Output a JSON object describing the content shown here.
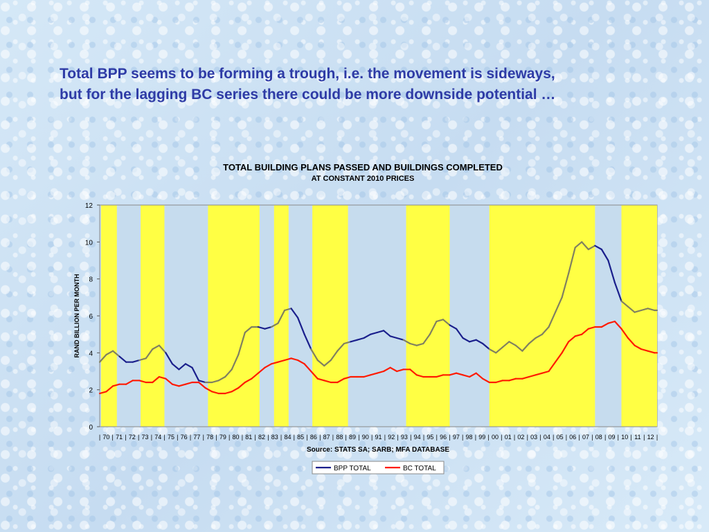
{
  "headline": {
    "line1": "Total BPP seems to be forming a trough, i.e. the movement is sideways,",
    "line2": "but for the lagging BC series there could be more downside potential …"
  },
  "colors": {
    "bpp": "#1a1f8c",
    "bc": "#ff1a00",
    "shade_band": "#ffff44",
    "overlap": "#808060",
    "plot_bg": "#c6dcee",
    "headline": "#2e3ba6"
  },
  "chart_data": {
    "type": "line",
    "title": "TOTAL BUILDING PLANS PASSED AND BUILDINGS COMPLETED",
    "subtitle": "AT CONSTANT 2010 PRICES",
    "ylabel": "RAND BILLION PER MONTH",
    "xlabel": "Source: STATS SA; SARB; MFA DATABASE",
    "ylim": [
      0,
      12
    ],
    "yticks": [
      "0",
      "2",
      "4",
      "6",
      "8",
      "10",
      "12"
    ],
    "xlim": [
      1970,
      2012.2
    ],
    "categories": [
      "70",
      "71",
      "72",
      "73",
      "74",
      "75",
      "76",
      "77",
      "78",
      "79",
      "80",
      "81",
      "82",
      "83",
      "84",
      "85",
      "86",
      "87",
      "88",
      "89",
      "90",
      "91",
      "92",
      "93",
      "94",
      "95",
      "96",
      "97",
      "98",
      "99",
      "00",
      "01",
      "02",
      "03",
      "04",
      "05",
      "06",
      "07",
      "08",
      "09",
      "10",
      "11",
      "12"
    ],
    "legend": {
      "position": "bottom-center"
    },
    "shaded_periods": [
      [
        1970.1,
        1971.3
      ],
      [
        1973.1,
        1974.9
      ],
      [
        1978.2,
        1982.1
      ],
      [
        1983.2,
        1984.3
      ],
      [
        1986.1,
        1988.8
      ],
      [
        1993.2,
        1996.5
      ],
      [
        1999.5,
        2007.5
      ],
      [
        2009.5,
        2012.2
      ]
    ],
    "series": [
      {
        "name": "BPP TOTAL",
        "x": [
          1970.0,
          1970.5,
          1971.0,
          1971.5,
          1972.0,
          1972.5,
          1973.0,
          1973.5,
          1974.0,
          1974.5,
          1975.0,
          1975.5,
          1976.0,
          1976.5,
          1977.0,
          1977.5,
          1978.0,
          1978.5,
          1979.0,
          1979.5,
          1980.0,
          1980.5,
          1981.0,
          1981.5,
          1982.0,
          1982.5,
          1983.0,
          1983.5,
          1984.0,
          1984.5,
          1985.0,
          1985.5,
          1986.0,
          1986.5,
          1987.0,
          1987.5,
          1988.0,
          1988.5,
          1989.0,
          1989.5,
          1990.0,
          1990.5,
          1991.0,
          1991.5,
          1992.0,
          1992.5,
          1993.0,
          1993.5,
          1994.0,
          1994.5,
          1995.0,
          1995.5,
          1996.0,
          1996.5,
          1997.0,
          1997.5,
          1998.0,
          1998.5,
          1999.0,
          1999.5,
          2000.0,
          2000.5,
          2001.0,
          2001.5,
          2002.0,
          2002.5,
          2003.0,
          2003.5,
          2004.0,
          2004.5,
          2005.0,
          2005.5,
          2006.0,
          2006.5,
          2007.0,
          2007.5,
          2008.0,
          2008.5,
          2009.0,
          2009.5,
          2010.0,
          2010.5,
          2011.0,
          2011.5,
          2012.0,
          2012.2
        ],
        "y": [
          3.5,
          3.9,
          4.1,
          3.8,
          3.5,
          3.5,
          3.6,
          3.7,
          4.2,
          4.4,
          4.0,
          3.4,
          3.1,
          3.4,
          3.2,
          2.5,
          2.4,
          2.4,
          2.5,
          2.7,
          3.1,
          3.9,
          5.1,
          5.4,
          5.4,
          5.3,
          5.4,
          5.6,
          6.3,
          6.4,
          5.9,
          5.0,
          4.2,
          3.6,
          3.3,
          3.6,
          4.1,
          4.5,
          4.6,
          4.7,
          4.8,
          5.0,
          5.1,
          5.2,
          4.9,
          4.8,
          4.7,
          4.5,
          4.4,
          4.5,
          5.0,
          5.7,
          5.8,
          5.5,
          5.3,
          4.8,
          4.6,
          4.7,
          4.5,
          4.2,
          4.0,
          4.3,
          4.6,
          4.4,
          4.1,
          4.5,
          4.8,
          5.0,
          5.4,
          6.2,
          7.0,
          8.3,
          9.7,
          10.0,
          9.6,
          9.8,
          9.6,
          9.0,
          7.8,
          6.8,
          6.5,
          6.2,
          6.3,
          6.4,
          6.3,
          6.3
        ]
      },
      {
        "name": "BC TOTAL",
        "x": [
          1970.0,
          1970.5,
          1971.0,
          1971.5,
          1972.0,
          1972.5,
          1973.0,
          1973.5,
          1974.0,
          1974.5,
          1975.0,
          1975.5,
          1976.0,
          1976.5,
          1977.0,
          1977.5,
          1978.0,
          1978.5,
          1979.0,
          1979.5,
          1980.0,
          1980.5,
          1981.0,
          1981.5,
          1982.0,
          1982.5,
          1983.0,
          1983.5,
          1984.0,
          1984.5,
          1985.0,
          1985.5,
          1986.0,
          1986.5,
          1987.0,
          1987.5,
          1988.0,
          1988.5,
          1989.0,
          1989.5,
          1990.0,
          1990.5,
          1991.0,
          1991.5,
          1992.0,
          1992.5,
          1993.0,
          1993.5,
          1994.0,
          1994.5,
          1995.0,
          1995.5,
          1996.0,
          1996.5,
          1997.0,
          1997.5,
          1998.0,
          1998.5,
          1999.0,
          1999.5,
          2000.0,
          2000.5,
          2001.0,
          2001.5,
          2002.0,
          2002.5,
          2003.0,
          2003.5,
          2004.0,
          2004.5,
          2005.0,
          2005.5,
          2006.0,
          2006.5,
          2007.0,
          2007.5,
          2008.0,
          2008.5,
          2009.0,
          2009.5,
          2010.0,
          2010.5,
          2011.0,
          2011.5,
          2012.0,
          2012.2
        ],
        "y": [
          1.8,
          1.9,
          2.2,
          2.3,
          2.3,
          2.5,
          2.5,
          2.4,
          2.4,
          2.7,
          2.6,
          2.3,
          2.2,
          2.3,
          2.4,
          2.4,
          2.1,
          1.9,
          1.8,
          1.8,
          1.9,
          2.1,
          2.4,
          2.6,
          2.9,
          3.2,
          3.4,
          3.5,
          3.6,
          3.7,
          3.6,
          3.4,
          3.0,
          2.6,
          2.5,
          2.4,
          2.4,
          2.6,
          2.7,
          2.7,
          2.7,
          2.8,
          2.9,
          3.0,
          3.2,
          3.0,
          3.1,
          3.1,
          2.8,
          2.7,
          2.7,
          2.7,
          2.8,
          2.8,
          2.9,
          2.8,
          2.7,
          2.9,
          2.6,
          2.4,
          2.4,
          2.5,
          2.5,
          2.6,
          2.6,
          2.7,
          2.8,
          2.9,
          3.0,
          3.5,
          4.0,
          4.6,
          4.9,
          5.0,
          5.3,
          5.4,
          5.4,
          5.6,
          5.7,
          5.3,
          4.8,
          4.4,
          4.2,
          4.1,
          4.0,
          4.0
        ]
      }
    ]
  }
}
